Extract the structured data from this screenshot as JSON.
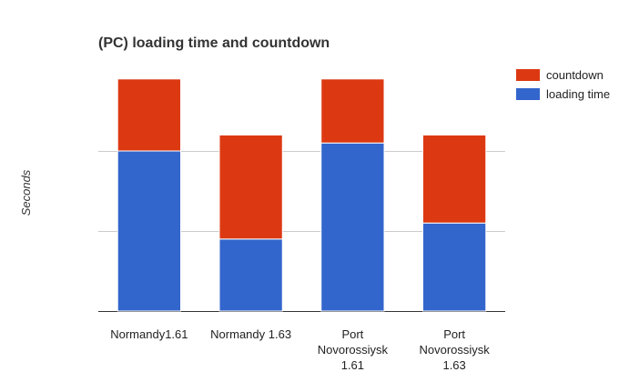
{
  "chart_data": {
    "type": "bar",
    "stacked": true,
    "title": "(PC) loading time and countdown",
    "xlabel": "",
    "ylabel": "Seconds",
    "categories": [
      [
        "Normandy1.61"
      ],
      [
        "Normandy  1.63"
      ],
      [
        "Port",
        "Novorossiysk",
        "1.61"
      ],
      [
        "Port",
        "Novorossiysk",
        "1.63"
      ]
    ],
    "series": [
      {
        "name": "loading time",
        "color": "#3366cc",
        "values": [
          2.0,
          0.9,
          2.1,
          1.1
        ]
      },
      {
        "name": "countdown",
        "color": "#dc3912",
        "values": [
          0.9,
          1.3,
          0.8,
          1.1
        ]
      }
    ],
    "ylim": [
      0,
      3
    ],
    "y_ticks": [
      0,
      1,
      2
    ],
    "y_tick_labels_shown": false,
    "grid": true,
    "legend_position": "right"
  }
}
